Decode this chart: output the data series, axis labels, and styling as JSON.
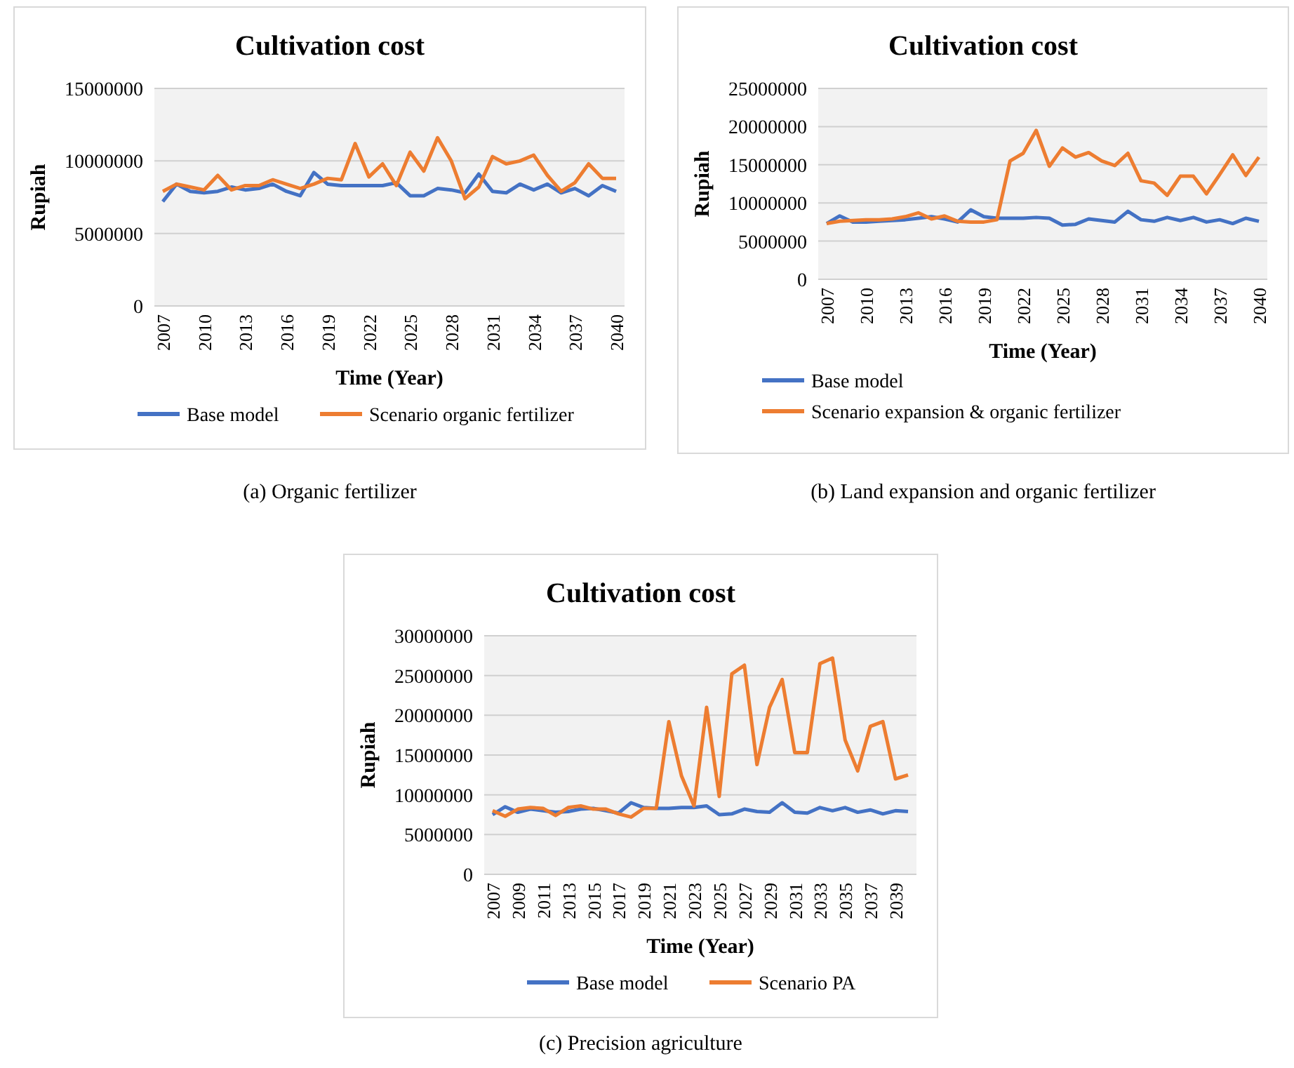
{
  "chart_data": [
    {
      "type": "line",
      "title": "Cultivation cost",
      "xlabel": "Time (Year)",
      "ylabel": "Rupiah",
      "annotations": [
        "(a) Organic fertilizer"
      ],
      "categories": [
        "2007",
        null,
        null,
        "2010",
        null,
        null,
        "2013",
        null,
        null,
        "2016",
        null,
        null,
        "2019",
        null,
        null,
        "2022",
        null,
        null,
        "2025",
        null,
        null,
        "2028",
        null,
        null,
        "2031",
        null,
        null,
        "2034",
        null,
        null,
        "2037",
        null,
        null,
        "2040"
      ],
      "series": [
        {
          "name": "Base model",
          "color": "#4472c4",
          "values": [
            7200000,
            8400000,
            7900000,
            7800000,
            7900000,
            8200000,
            8000000,
            8100000,
            8400000,
            7900000,
            7600000,
            9200000,
            8400000,
            8300000,
            8300000,
            8300000,
            8300000,
            8500000,
            7600000,
            7600000,
            8100000,
            8000000,
            7800000,
            9100000,
            7900000,
            7800000,
            8400000,
            8000000,
            8400000,
            7800000,
            8100000,
            7600000,
            8300000,
            7900000
          ]
        },
        {
          "name": "Scenario organic fertilizer",
          "color": "#ed7d31",
          "values": [
            7900000,
            8400000,
            8200000,
            8000000,
            9000000,
            8000000,
            8300000,
            8300000,
            8700000,
            8400000,
            8100000,
            8400000,
            8800000,
            8700000,
            11200000,
            8900000,
            9800000,
            8300000,
            10600000,
            9300000,
            11600000,
            10000000,
            7400000,
            8200000,
            10300000,
            9800000,
            10000000,
            10400000,
            9000000,
            7900000,
            8500000,
            9800000,
            8800000,
            8800000
          ]
        }
      ],
      "ylim": [
        0,
        15000000
      ],
      "yticks": [
        0,
        5000000,
        10000000,
        15000000
      ],
      "grid": "y",
      "legend": "bottom"
    },
    {
      "type": "line",
      "title": "Cultivation cost",
      "xlabel": "Time (Year)",
      "ylabel": "Rupiah",
      "annotations": [
        "(b) Land expansion and organic fertilizer"
      ],
      "categories": [
        "2007",
        null,
        null,
        "2010",
        null,
        null,
        "2013",
        null,
        null,
        "2016",
        null,
        null,
        "2019",
        null,
        null,
        "2022",
        null,
        null,
        "2025",
        null,
        null,
        "2028",
        null,
        null,
        "2031",
        null,
        null,
        "2034",
        null,
        null,
        "2037",
        null,
        null,
        "2040"
      ],
      "series": [
        {
          "name": "Base model",
          "color": "#4472c4",
          "values": [
            7300000,
            8300000,
            7500000,
            7500000,
            7600000,
            7700000,
            7800000,
            8000000,
            8200000,
            7900000,
            7500000,
            9100000,
            8200000,
            8000000,
            8000000,
            8000000,
            8100000,
            8000000,
            7100000,
            7200000,
            7900000,
            7700000,
            7500000,
            8900000,
            7800000,
            7600000,
            8100000,
            7700000,
            8100000,
            7500000,
            7800000,
            7300000,
            8000000,
            7600000
          ]
        },
        {
          "name": "Scenario expansion & organic fertilizer",
          "color": "#ed7d31",
          "values": [
            7300000,
            7600000,
            7700000,
            7800000,
            7800000,
            7900000,
            8200000,
            8700000,
            7900000,
            8300000,
            7600000,
            7500000,
            7500000,
            7800000,
            15500000,
            16500000,
            19500000,
            14800000,
            17200000,
            16000000,
            16600000,
            15500000,
            14900000,
            16500000,
            12900000,
            12600000,
            11000000,
            13500000,
            13500000,
            11200000,
            13700000,
            16300000,
            13600000,
            16000000
          ]
        }
      ],
      "ylim": [
        0,
        25000000
      ],
      "yticks": [
        0,
        5000000,
        10000000,
        15000000,
        20000000,
        25000000
      ],
      "grid": "y",
      "legend": "bottom"
    },
    {
      "type": "line",
      "title": "Cultivation cost",
      "xlabel": "Time (Year)",
      "ylabel": "Rupiah",
      "annotations": [
        "(c) Precision agriculture"
      ],
      "categories": [
        "2007",
        null,
        "2009",
        null,
        "2011",
        null,
        "2013",
        null,
        "2015",
        null,
        "2017",
        null,
        "2019",
        null,
        "2021",
        null,
        "2023",
        null,
        "2025",
        null,
        "2027",
        null,
        "2029",
        null,
        "2031",
        null,
        "2033",
        null,
        "2035",
        null,
        "2037",
        null,
        "2039",
        null
      ],
      "series": [
        {
          "name": "Base model",
          "color": "#4472c4",
          "values": [
            7500000,
            8500000,
            7800000,
            8200000,
            8000000,
            7800000,
            7900000,
            8200000,
            8300000,
            8000000,
            7700000,
            9000000,
            8400000,
            8300000,
            8300000,
            8400000,
            8400000,
            8600000,
            7500000,
            7600000,
            8200000,
            7900000,
            7800000,
            9000000,
            7800000,
            7700000,
            8400000,
            8000000,
            8400000,
            7800000,
            8100000,
            7600000,
            8000000,
            7900000
          ]
        },
        {
          "name": "Scenario PA",
          "color": "#ed7d31",
          "values": [
            8000000,
            7300000,
            8200000,
            8400000,
            8300000,
            7400000,
            8400000,
            8600000,
            8200000,
            8200000,
            7600000,
            7200000,
            8300000,
            8300000,
            19200000,
            12400000,
            8600000,
            21000000,
            9800000,
            25200000,
            26300000,
            13800000,
            21000000,
            24500000,
            15300000,
            15300000,
            26500000,
            27200000,
            16900000,
            13000000,
            18600000,
            19200000,
            12000000,
            12500000
          ]
        }
      ],
      "ylim": [
        0,
        30000000
      ],
      "yticks": [
        0,
        5000000,
        10000000,
        15000000,
        20000000,
        25000000,
        30000000
      ],
      "grid": "y",
      "legend": "bottom"
    }
  ]
}
